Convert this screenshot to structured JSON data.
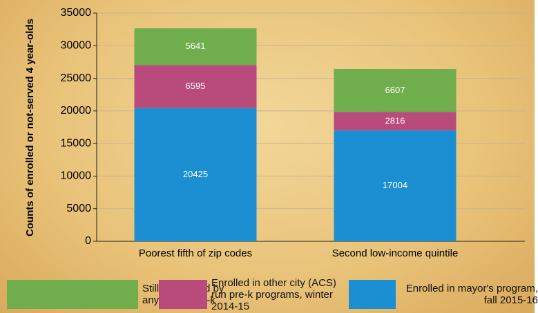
{
  "chart_data": {
    "type": "stacked_bar",
    "ylabel": "Counts of enrolled or not-served 4 year-olds",
    "categories": [
      "Poorest fifth of zip codes",
      "Second low-income quintile"
    ],
    "series": [
      {
        "name": "Enrolled in mayor's program, fall 2015-16",
        "color": "#1c8fd2",
        "values": [
          20425,
          17004
        ]
      },
      {
        "name": "Enrolled in other city (ACS) run pre-k programs, winter 2014-15",
        "color": "#b84a7c",
        "values": [
          6595,
          2816
        ]
      },
      {
        "name": "Still not served by any public pre-k",
        "color": "#70ad4c",
        "values": [
          5641,
          6607
        ]
      }
    ],
    "ylim": [
      0,
      35000
    ],
    "yticks": [
      0,
      5000,
      10000,
      15000,
      20000,
      25000,
      30000,
      35000
    ],
    "grid": true,
    "legend": "bottom"
  }
}
